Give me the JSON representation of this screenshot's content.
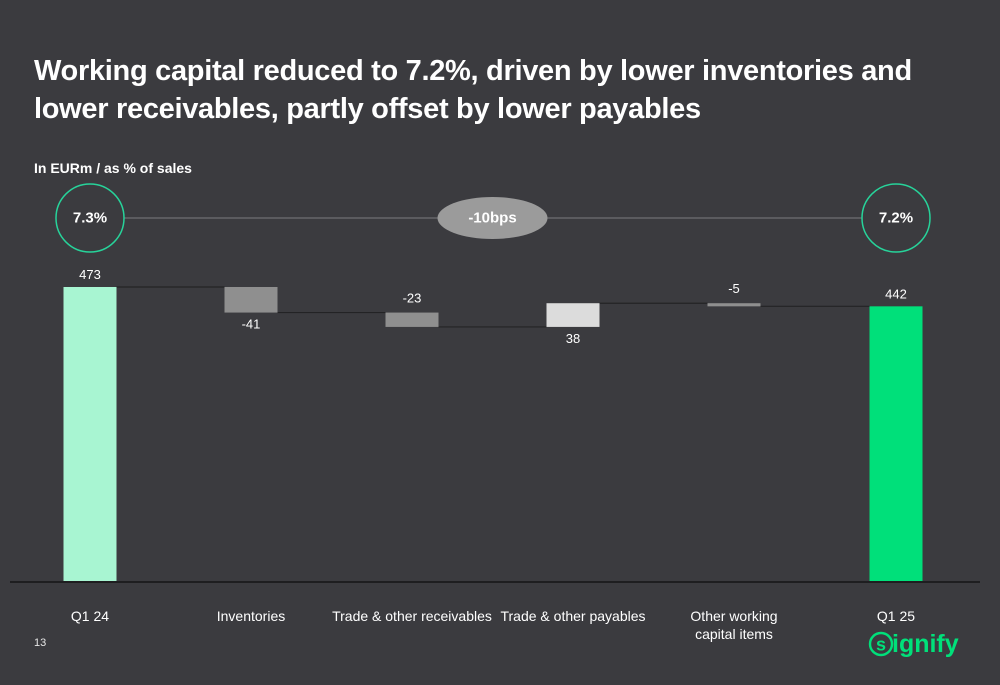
{
  "title": "Working capital reduced to 7.2%, driven by lower inventories and lower receivables, partly offset by lower payables",
  "unit_label": "In EURm / as % of sales",
  "page_number": "13",
  "brand": "signify",
  "colors": {
    "background": "#3b3b3f",
    "start_bar": "#a8f5d2",
    "end_bar": "#00e07a",
    "decrease": "#8f8f8f",
    "increase": "#dcdcdc",
    "circle_stroke": "#27d39a"
  },
  "chart_data": {
    "type": "bar",
    "variant": "waterfall",
    "categories": [
      "Q1 24",
      "Inventories",
      "Trade & other receivables",
      "Trade & other payables",
      "Other working capital items",
      "Q1 25"
    ],
    "category_labels": [
      [
        "Q1 24"
      ],
      [
        "Inventories"
      ],
      [
        "Trade & other receivables"
      ],
      [
        "Trade & other payables"
      ],
      [
        "Other working",
        "capital items"
      ],
      [
        "Q1 25"
      ]
    ],
    "values": [
      473,
      -41,
      -23,
      38,
      -5,
      442
    ],
    "value_labels": [
      "473",
      "-41",
      "-23",
      "38",
      "-5",
      "442"
    ],
    "kinds": [
      "total",
      "delta",
      "delta",
      "delta",
      "delta",
      "total"
    ],
    "ylim": [
      0,
      473
    ],
    "xlabel": "",
    "ylabel": "",
    "grid": false,
    "ratio_start": "7.3%",
    "ratio_end": "7.2%",
    "ratio_change": "-10bps"
  }
}
